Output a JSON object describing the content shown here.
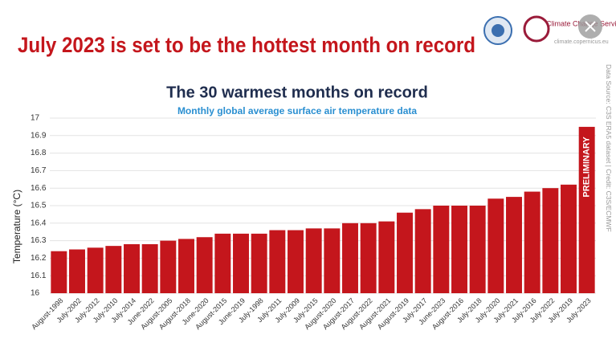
{
  "header": {
    "headline": "July 2023 is set to be the hottest month on record",
    "logo_text": "Climate Change Service",
    "logo_url": "climate.copernicus.eu",
    "source": "Data Source: C3S ERA5 dataset | Credit: C3S/ECMWF"
  },
  "chart_data": {
    "type": "bar",
    "title": "The 30 warmest months on record",
    "subtitle": "Monthly global average surface air temperature data",
    "ylabel": "Temperature (°C)",
    "annotation": "PRELIMINARY",
    "categories": [
      "August-1998",
      "July-2002",
      "July-2012",
      "July-2010",
      "July-2014",
      "June-2022",
      "August-2005",
      "August-2018",
      "June-2020",
      "August-2015",
      "June-2019",
      "July-1998",
      "July-2011",
      "July-2009",
      "July-2015",
      "August-2020",
      "August-2017",
      "August-2022",
      "August-2021",
      "August-2019",
      "July-2017",
      "June-2023",
      "August-2016",
      "July-2018",
      "July-2020",
      "July-2021",
      "July-2016",
      "July-2022",
      "July-2019",
      "July-2023"
    ],
    "values": [
      16.24,
      16.25,
      16.26,
      16.27,
      16.28,
      16.28,
      16.3,
      16.31,
      16.32,
      16.34,
      16.34,
      16.34,
      16.36,
      16.36,
      16.37,
      16.37,
      16.4,
      16.4,
      16.41,
      16.46,
      16.48,
      16.5,
      16.5,
      16.5,
      16.54,
      16.55,
      16.58,
      16.6,
      16.62,
      16.95
    ],
    "color": "#c4161c",
    "ylim": [
      16,
      17
    ],
    "yticks": [
      16,
      16.1,
      16.2,
      16.3,
      16.4,
      16.5,
      16.6,
      16.7,
      16.8,
      16.9,
      17
    ],
    "grid": true
  }
}
